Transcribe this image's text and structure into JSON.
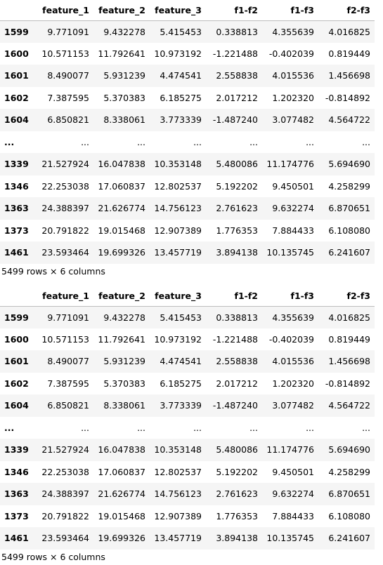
{
  "dataframes": [
    {
      "columns": [
        "",
        "feature_1",
        "feature_2",
        "feature_3",
        "f1-f2",
        "f1-f3",
        "f2-f3"
      ],
      "rows": [
        {
          "index": "1599",
          "cells": [
            "9.771091",
            "9.432278",
            "5.415453",
            "0.338813",
            "4.355639",
            "4.016825"
          ]
        },
        {
          "index": "1600",
          "cells": [
            "10.571153",
            "11.792641",
            "10.973192",
            "-1.221488",
            "-0.402039",
            "0.819449"
          ]
        },
        {
          "index": "1601",
          "cells": [
            "8.490077",
            "5.931239",
            "4.474541",
            "2.558838",
            "4.015536",
            "1.456698"
          ]
        },
        {
          "index": "1602",
          "cells": [
            "7.387595",
            "5.370383",
            "6.185275",
            "2.017212",
            "1.202320",
            "-0.814892"
          ]
        },
        {
          "index": "1604",
          "cells": [
            "6.850821",
            "8.338061",
            "3.773339",
            "-1.487240",
            "3.077482",
            "4.564722"
          ]
        },
        {
          "index": "...",
          "cells": [
            "...",
            "...",
            "...",
            "...",
            "...",
            "..."
          ]
        },
        {
          "index": "1339",
          "cells": [
            "21.527924",
            "16.047838",
            "10.353148",
            "5.480086",
            "11.174776",
            "5.694690"
          ]
        },
        {
          "index": "1346",
          "cells": [
            "22.253038",
            "17.060837",
            "12.802537",
            "5.192202",
            "9.450501",
            "4.258299"
          ]
        },
        {
          "index": "1363",
          "cells": [
            "24.388397",
            "21.626774",
            "14.756123",
            "2.761623",
            "9.632274",
            "6.870651"
          ]
        },
        {
          "index": "1373",
          "cells": [
            "20.791822",
            "19.015468",
            "12.907389",
            "1.776353",
            "7.884433",
            "6.108080"
          ]
        },
        {
          "index": "1461",
          "cells": [
            "23.593464",
            "19.699326",
            "13.457719",
            "3.894138",
            "10.135745",
            "6.241607"
          ]
        }
      ],
      "shape": "5499 rows × 6 columns"
    },
    {
      "columns": [
        "",
        "feature_1",
        "feature_2",
        "feature_3",
        "f1-f2",
        "f1-f3",
        "f2-f3"
      ],
      "rows": [
        {
          "index": "1599",
          "cells": [
            "9.771091",
            "9.432278",
            "5.415453",
            "0.338813",
            "4.355639",
            "4.016825"
          ]
        },
        {
          "index": "1600",
          "cells": [
            "10.571153",
            "11.792641",
            "10.973192",
            "-1.221488",
            "-0.402039",
            "0.819449"
          ]
        },
        {
          "index": "1601",
          "cells": [
            "8.490077",
            "5.931239",
            "4.474541",
            "2.558838",
            "4.015536",
            "1.456698"
          ]
        },
        {
          "index": "1602",
          "cells": [
            "7.387595",
            "5.370383",
            "6.185275",
            "2.017212",
            "1.202320",
            "-0.814892"
          ]
        },
        {
          "index": "1604",
          "cells": [
            "6.850821",
            "8.338061",
            "3.773339",
            "-1.487240",
            "3.077482",
            "4.564722"
          ]
        },
        {
          "index": "...",
          "cells": [
            "...",
            "...",
            "...",
            "...",
            "...",
            "..."
          ]
        },
        {
          "index": "1339",
          "cells": [
            "21.527924",
            "16.047838",
            "10.353148",
            "5.480086",
            "11.174776",
            "5.694690"
          ]
        },
        {
          "index": "1346",
          "cells": [
            "22.253038",
            "17.060837",
            "12.802537",
            "5.192202",
            "9.450501",
            "4.258299"
          ]
        },
        {
          "index": "1363",
          "cells": [
            "24.388397",
            "21.626774",
            "14.756123",
            "2.761623",
            "9.632274",
            "6.870651"
          ]
        },
        {
          "index": "1373",
          "cells": [
            "20.791822",
            "19.015468",
            "12.907389",
            "1.776353",
            "7.884433",
            "6.108080"
          ]
        },
        {
          "index": "1461",
          "cells": [
            "23.593464",
            "19.699326",
            "13.457719",
            "3.894138",
            "10.135745",
            "6.241607"
          ]
        }
      ],
      "shape": "5499 rows × 6 columns"
    }
  ]
}
